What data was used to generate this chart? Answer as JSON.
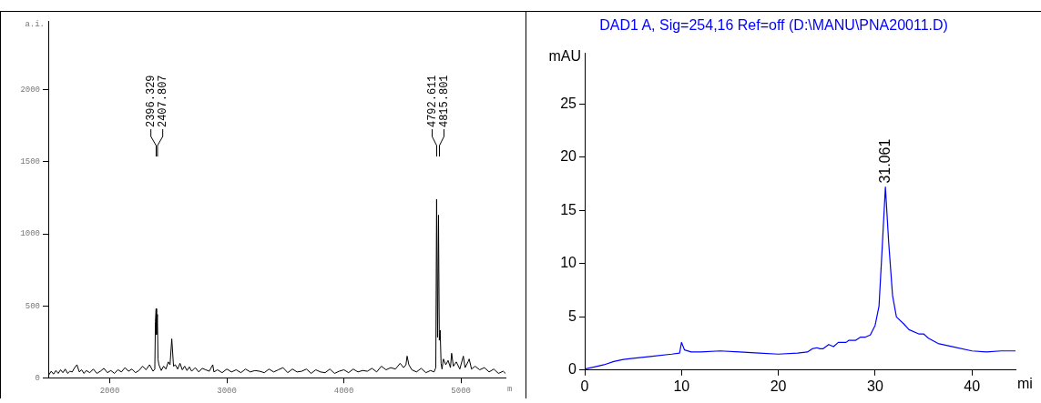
{
  "chart_data": [
    {
      "type": "line",
      "ylabel": "a.i.",
      "xlabel": "m",
      "xlim": [
        1475,
        5380
      ],
      "xticks": [
        2000,
        3000,
        4000,
        5000
      ],
      "ylim": [
        0,
        2480
      ],
      "yticks": [
        0,
        500,
        1000,
        1500,
        2000
      ],
      "grid": false,
      "legend": false,
      "marker": "none",
      "series": [
        {
          "color": "#000000",
          "x": [
            1480,
            1500,
            1520,
            1540,
            1560,
            1580,
            1600,
            1620,
            1640,
            1660,
            1680,
            1700,
            1720,
            1740,
            1760,
            1780,
            1800,
            1830,
            1860,
            1890,
            1920,
            1950,
            1980,
            2010,
            2040,
            2070,
            2100,
            2130,
            2160,
            2190,
            2220,
            2250,
            2280,
            2310,
            2340,
            2370,
            2385,
            2390,
            2396,
            2400,
            2407,
            2412,
            2420,
            2440,
            2460,
            2480,
            2500,
            2515,
            2530,
            2545,
            2560,
            2580,
            2600,
            2620,
            2640,
            2660,
            2680,
            2700,
            2730,
            2760,
            2790,
            2820,
            2850,
            2880,
            2890,
            2920,
            2960,
            3000,
            3040,
            3080,
            3120,
            3160,
            3200,
            3240,
            3280,
            3320,
            3360,
            3400,
            3440,
            3480,
            3520,
            3560,
            3600,
            3640,
            3680,
            3720,
            3760,
            3800,
            3840,
            3880,
            3920,
            3960,
            4000,
            4040,
            4080,
            4120,
            4160,
            4200,
            4240,
            4280,
            4320,
            4360,
            4400,
            4440,
            4480,
            4510,
            4530,
            4540,
            4555,
            4580,
            4620,
            4660,
            4700,
            4740,
            4770,
            4785,
            4792,
            4800,
            4808,
            4815,
            4822,
            4830,
            4838,
            4850,
            4870,
            4890,
            4910,
            4920,
            4935,
            4960,
            4990,
            5020,
            5035,
            5060,
            5070,
            5090,
            5120,
            5160,
            5200,
            5240,
            5280,
            5320,
            5360,
            5380
          ],
          "values": [
            20,
            45,
            25,
            50,
            30,
            55,
            35,
            60,
            30,
            45,
            40,
            70,
            90,
            40,
            55,
            30,
            50,
            35,
            60,
            30,
            45,
            65,
            35,
            50,
            30,
            55,
            40,
            70,
            45,
            60,
            35,
            50,
            80,
            55,
            90,
            45,
            60,
            390,
            480,
            300,
            440,
            130,
            90,
            50,
            80,
            60,
            110,
            90,
            270,
            80,
            90,
            60,
            100,
            55,
            80,
            50,
            75,
            45,
            70,
            40,
            65,
            55,
            45,
            90,
            40,
            55,
            35,
            60,
            40,
            55,
            35,
            60,
            40,
            50,
            45,
            35,
            60,
            40,
            55,
            70,
            35,
            60,
            40,
            45,
            60,
            30,
            55,
            40,
            35,
            60,
            30,
            45,
            55,
            35,
            60,
            40,
            50,
            45,
            65,
            40,
            80,
            55,
            70,
            60,
            100,
            70,
            90,
            150,
            90,
            55,
            40,
            65,
            35,
            50,
            40,
            70,
            1240,
            280,
            1130,
            260,
            330,
            100,
            60,
            130,
            90,
            120,
            70,
            170,
            80,
            110,
            60,
            150,
            70,
            110,
            130,
            60,
            80,
            55,
            70,
            40,
            60,
            30,
            45,
            30
          ]
        }
      ],
      "annotations": [
        "2396.329",
        "2407.807",
        "4792.611",
        "4815.801"
      ]
    },
    {
      "type": "line",
      "title": "DAD1 A, Sig=254,16 Ref=off (D:\\MANU\\PNA20011.D)",
      "ylabel": "mAU",
      "xlabel": "mi",
      "xlim": [
        0,
        44.5
      ],
      "xticks": [
        0,
        10,
        20,
        30,
        40
      ],
      "ylim": [
        0,
        29.8
      ],
      "yticks": [
        0,
        5,
        10,
        15,
        20,
        25
      ],
      "grid": false,
      "legend": false,
      "marker": "none",
      "series": [
        {
          "color": "#0000ff",
          "x": [
            0,
            1,
            2,
            3,
            4,
            5,
            7,
            9,
            9.8,
            10,
            10.3,
            11,
            12,
            14,
            16,
            18,
            20,
            22,
            23,
            23.5,
            24,
            24.3,
            24.6,
            25.2,
            25.7,
            26.2,
            27,
            27.3,
            28,
            28.5,
            29,
            29.5,
            30,
            30.4,
            30.7,
            31.061,
            31.4,
            31.8,
            32.2,
            33,
            33.5,
            34.5,
            35,
            35.5,
            36.5,
            38,
            40,
            41.5,
            43,
            44.5
          ],
          "values": [
            0.1,
            0.3,
            0.5,
            0.8,
            1.0,
            1.1,
            1.3,
            1.5,
            1.6,
            2.6,
            1.9,
            1.7,
            1.7,
            1.8,
            1.7,
            1.6,
            1.5,
            1.6,
            1.7,
            2.0,
            2.1,
            2.0,
            2.0,
            2.4,
            2.2,
            2.6,
            2.6,
            2.8,
            2.8,
            3.1,
            3.1,
            3.3,
            4.2,
            6.0,
            11.0,
            17.2,
            12.0,
            7.0,
            5.0,
            4.3,
            3.8,
            3.4,
            3.4,
            3.0,
            2.5,
            2.2,
            1.8,
            1.7,
            1.8,
            1.8
          ]
        }
      ],
      "annotations": [
        {
          "text": "31.061",
          "x": 31.061,
          "y": 17.2
        }
      ]
    }
  ]
}
